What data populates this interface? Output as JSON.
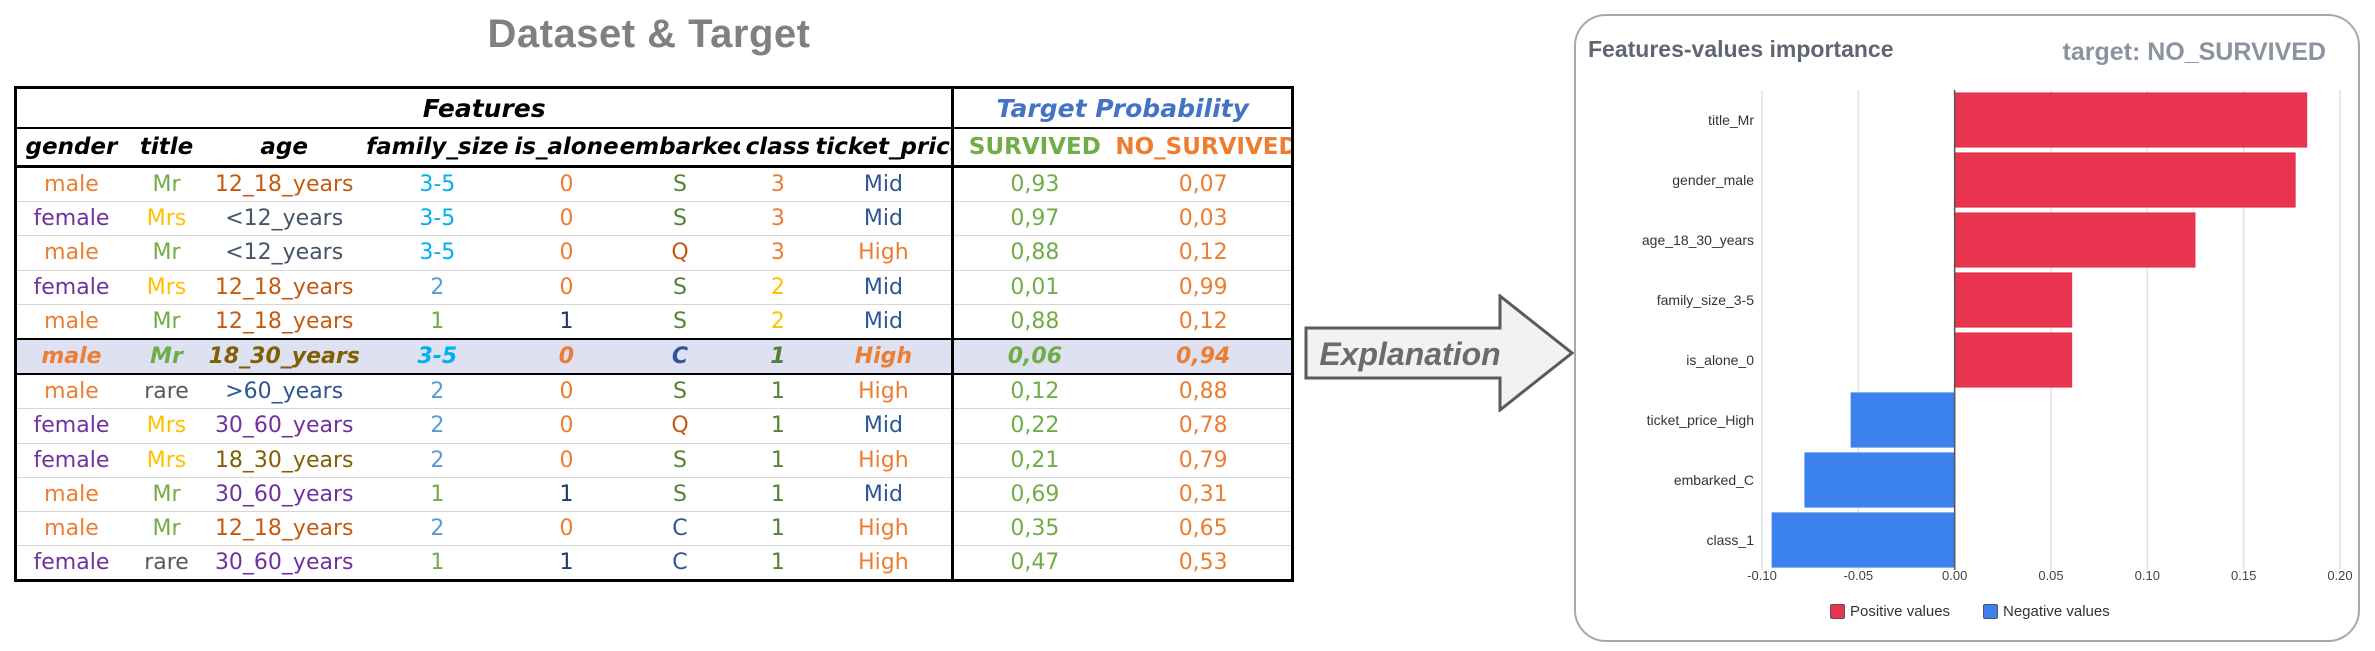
{
  "left_title": "Dataset & Target",
  "table": {
    "group_features": "Features",
    "group_target": "Target Probability",
    "columns": [
      "gender",
      "title",
      "age",
      "family_size",
      "is_alone",
      "embarked",
      "class",
      "ticket_price",
      "SURVIVED",
      "NO_SURVIVED"
    ],
    "rows": [
      [
        "male",
        "Mr",
        "12_18_years",
        "3-5",
        "0",
        "S",
        "3",
        "Mid",
        "0,93",
        "0,07"
      ],
      [
        "female",
        "Mrs",
        "<12_years",
        "3-5",
        "0",
        "S",
        "3",
        "Mid",
        "0,97",
        "0,03"
      ],
      [
        "male",
        "Mr",
        "<12_years",
        "3-5",
        "0",
        "Q",
        "3",
        "High",
        "0,88",
        "0,12"
      ],
      [
        "female",
        "Mrs",
        "12_18_years",
        "2",
        "0",
        "S",
        "2",
        "Mid",
        "0,01",
        "0,99"
      ],
      [
        "male",
        "Mr",
        "12_18_years",
        "1",
        "1",
        "S",
        "2",
        "Mid",
        "0,88",
        "0,12"
      ],
      [
        "male",
        "Mr",
        "18_30_years",
        "3-5",
        "0",
        "C",
        "1",
        "High",
        "0,06",
        "0,94"
      ],
      [
        "male",
        "rare",
        ">60_years",
        "2",
        "0",
        "S",
        "1",
        "High",
        "0,12",
        "0,88"
      ],
      [
        "female",
        "Mrs",
        "30_60_years",
        "2",
        "0",
        "Q",
        "1",
        "Mid",
        "0,22",
        "0,78"
      ],
      [
        "female",
        "Mrs",
        "18_30_years",
        "2",
        "0",
        "S",
        "1",
        "High",
        "0,21",
        "0,79"
      ],
      [
        "male",
        "Mr",
        "30_60_years",
        "1",
        "1",
        "S",
        "1",
        "Mid",
        "0,69",
        "0,31"
      ],
      [
        "male",
        "Mr",
        "12_18_years",
        "2",
        "0",
        "C",
        "1",
        "High",
        "0,35",
        "0,65"
      ],
      [
        "female",
        "rare",
        "30_60_years",
        "1",
        "1",
        "C",
        "1",
        "High",
        "0,47",
        "0,53"
      ]
    ],
    "highlight_row": 5,
    "value_colors": {
      "male": "#ed7d31",
      "female": "#7030a0",
      "Mr": "#70ad47",
      "Mrs": "#ffc000",
      "rare": "#595959",
      "12_18_years": "#c55a11",
      "<12_years": "#44546a",
      "18_30_years": "#806000",
      ">60_years": "#2f5597",
      "30_60_years": "#7030a0",
      "fs_3-5": "#00b0f0",
      "fs_2": "#5b9bd5",
      "fs_1": "#70ad47",
      "al_0": "#ed7d31",
      "al_1": "#1f3864",
      "S": "#548235",
      "Q": "#c55a11",
      "C": "#2f5597",
      "cl_3": "#ed7d31",
      "cl_2": "#ffc000",
      "cl_1": "#548235",
      "Mid": "#2f5597",
      "High": "#ed7d31",
      "survived": "#70ad47",
      "no_survived": "#ed7d31"
    }
  },
  "arrow_label": "Explanation",
  "chart_title": "Features-values importance",
  "chart_target": "target: NO_SURVIVED",
  "chart_data": {
    "type": "bar",
    "orientation": "horizontal",
    "categories": [
      "title_Mr",
      "gender_male",
      "age_18_30_years",
      "family_size_3-5",
      "is_alone_0",
      "ticket_price_High",
      "embarked_C",
      "class_1"
    ],
    "values": [
      0.183,
      0.177,
      0.125,
      0.061,
      0.061,
      -0.054,
      -0.078,
      -0.095
    ],
    "xlim": [
      -0.1,
      0.2
    ],
    "xticks": [
      "-0.10",
      "-0.05",
      "0.00",
      "0.05",
      "0.10",
      "0.15",
      "0.20"
    ],
    "grid": true,
    "legend": [
      {
        "name": "Positive values",
        "color": "#e8344e"
      },
      {
        "name": "Negative values",
        "color": "#3b82ec"
      }
    ],
    "legend_position": "bottom-center",
    "colors": {
      "positive": "#e8344e",
      "negative": "#3b82ec"
    }
  }
}
